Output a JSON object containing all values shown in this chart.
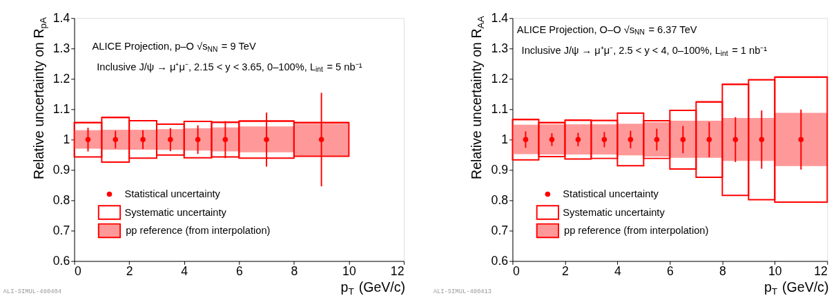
{
  "chart_data": [
    {
      "type": "scatter",
      "ylabel": "Relative uncertainty on R$_{pA}$",
      "xlabel": "p$_{T}$ (GeV/c)",
      "annotations": [
        "ALICE Projection, p–O √s$_{NN}$ = 9 TeV",
        "Inclusive J/ψ → μ⁺μ⁻, 2.15 < y < 3.65, 0–100%, L$_{int}$ = 5 nb⁻¹",
        "ALI-SIMUL-480404"
      ],
      "xlim": [
        0,
        12
      ],
      "xticks": [
        0,
        2,
        4,
        6,
        8,
        10,
        12
      ],
      "ylim": [
        0.6,
        1.4
      ],
      "yticks": [
        0.6,
        0.7,
        0.8,
        0.9,
        1,
        1.1,
        1.2,
        1.3,
        1.4
      ],
      "grid": false,
      "legend": "bottom left",
      "marker": "circle",
      "series": [
        {
          "name": "Statistical uncertainty",
          "color": "#ff0000",
          "x": [
            0.5,
            1.5,
            2.5,
            3.5,
            4.5,
            5.5,
            7,
            9
          ],
          "values": [
            1,
            1,
            1,
            1,
            1,
            1,
            1,
            1
          ],
          "errors": [
            0.039,
            0.029,
            0.031,
            0.038,
            0.047,
            0.061,
            0.089,
            0.154
          ]
        },
        {
          "name": "Systematic uncertainty",
          "type": "bar",
          "color": "#ff0000",
          "x": [
            0.5,
            1.5,
            2.5,
            3.5,
            4.5,
            5.5,
            7,
            9
          ],
          "xerrors": [
            0.5,
            0.5,
            0.5,
            0.5,
            0.5,
            0.5,
            1,
            1
          ],
          "base": [
            0.943,
            0.926,
            0.939,
            0.949,
            0.94,
            0.943,
            0.939,
            0.945
          ],
          "values": [
            0.113,
            0.147,
            0.123,
            0.102,
            0.12,
            0.114,
            0.122,
            0.111
          ]
        },
        {
          "name": "pp reference (from interpolation)",
          "type": "bar",
          "color": "#ff9999",
          "x": [
            0.5,
            1.5,
            2.5,
            3.5,
            4.5,
            5.5,
            7,
            9
          ],
          "xerrors": [
            0.5,
            0.5,
            0.5,
            0.5,
            0.5,
            0.5,
            1,
            1
          ],
          "base": [
            0.97,
            0.967,
            0.967,
            0.966,
            0.964,
            0.961,
            0.958,
            0.947
          ],
          "values": [
            0.06,
            0.064,
            0.064,
            0.067,
            0.072,
            0.078,
            0.084,
            0.104
          ]
        }
      ]
    },
    {
      "type": "scatter",
      "ylabel": "Relative uncertainty on R$_{AA}$",
      "xlabel": "p$_{T}$ (GeV/c)",
      "annotations": [
        "ALICE Projection, O–O √s$_{NN}$ = 6.37 TeV",
        "Inclusive J/ψ → μ⁺μ⁻, 2.5 < y < 4, 0–100%, L$_{int}$ = 1 nb⁻¹",
        "ALI-SIMUL-480413"
      ],
      "xlim": [
        0,
        12
      ],
      "xticks": [
        0,
        2,
        4,
        6,
        8,
        10,
        12
      ],
      "ylim": [
        0.6,
        1.4
      ],
      "yticks": [
        0.6,
        0.7,
        0.8,
        0.9,
        1,
        1.1,
        1.2,
        1.3,
        1.4
      ],
      "grid": false,
      "legend": "bottom left",
      "marker": "circle",
      "series": [
        {
          "name": "Statistical uncertainty",
          "color": "#ff0000",
          "x": [
            0.5,
            1.5,
            2.5,
            3.5,
            4.5,
            5.5,
            6.5,
            7.5,
            8.5,
            9.5,
            11
          ],
          "values": [
            1,
            1,
            1,
            1,
            1,
            1,
            1,
            1,
            1,
            1,
            1
          ],
          "errors": [
            0.027,
            0.021,
            0.022,
            0.025,
            0.029,
            0.036,
            0.045,
            0.058,
            0.074,
            0.096,
            0.099
          ]
        },
        {
          "name": "Systematic uncertainty",
          "type": "bar",
          "color": "#ff0000",
          "x": [
            0.5,
            1.5,
            2.5,
            3.5,
            4.5,
            5.5,
            6.5,
            7.5,
            8.5,
            9.5,
            11
          ],
          "xerrors": [
            0.5,
            0.5,
            0.5,
            0.5,
            0.5,
            0.5,
            0.5,
            0.5,
            0.5,
            0.5,
            1
          ],
          "base": [
            0.933,
            0.944,
            0.936,
            0.938,
            0.914,
            0.938,
            0.903,
            0.876,
            0.816,
            0.802,
            0.794
          ],
          "values": [
            0.133,
            0.112,
            0.128,
            0.125,
            0.173,
            0.124,
            0.193,
            0.248,
            0.366,
            0.395,
            0.412
          ]
        },
        {
          "name": "pp reference (from interpolation)",
          "type": "bar",
          "color": "#ff9999",
          "x": [
            0.5,
            1.5,
            2.5,
            3.5,
            4.5,
            5.5,
            6.5,
            7.5,
            8.5,
            9.5,
            11
          ],
          "xerrors": [
            0.5,
            0.5,
            0.5,
            0.5,
            0.5,
            0.5,
            0.5,
            0.5,
            0.5,
            0.5,
            1
          ],
          "base": [
            0.952,
            0.951,
            0.951,
            0.951,
            0.948,
            0.944,
            0.94,
            0.94,
            0.93,
            0.93,
            0.913
          ],
          "values": [
            0.096,
            0.098,
            0.098,
            0.098,
            0.103,
            0.112,
            0.121,
            0.121,
            0.14,
            0.14,
            0.174
          ]
        }
      ]
    }
  ]
}
